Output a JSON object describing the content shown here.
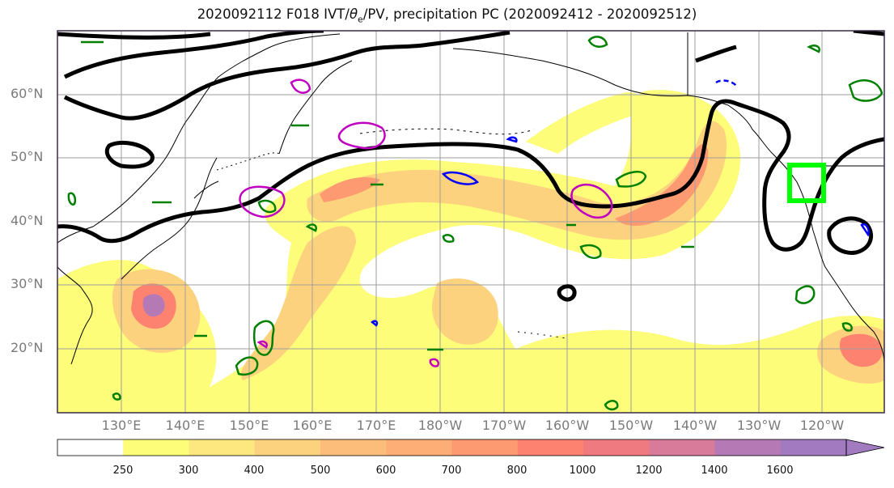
{
  "title": {
    "prefix": "2020092112 F018 IVT/",
    "theta": "θ",
    "theta_sub": "e",
    "suffix": "/PV, precipitation PC (2020092412 - 2020092512)"
  },
  "lat_labels": [
    "60°N",
    "50°N",
    "40°N",
    "30°N",
    "20°N"
  ],
  "lon_labels": [
    "130°E",
    "140°E",
    "150°E",
    "160°E",
    "170°E",
    "180°W",
    "170°W",
    "160°W",
    "150°W",
    "140°W",
    "130°W",
    "120°W"
  ],
  "colorbar": {
    "labels": [
      "250",
      "300",
      "400",
      "500",
      "600",
      "700",
      "800",
      "1000",
      "1200",
      "1400",
      "1600"
    ],
    "colors": [
      "#ffffff",
      "#fdfd7a",
      "#fde880",
      "#fdd27e",
      "#fdbd7a",
      "#fdae76",
      "#fd9a72",
      "#fd8270",
      "#ef7b80",
      "#d87a9a",
      "#b57ab5",
      "#a27ac0"
    ]
  },
  "colors": {
    "pv_contour": "#008000",
    "theta_contour": "#0000ff",
    "ivt_thick": "#000000",
    "magenta_contour": "#c000c0",
    "box": "#00ff00",
    "gridline": "#9e9e9e"
  }
}
